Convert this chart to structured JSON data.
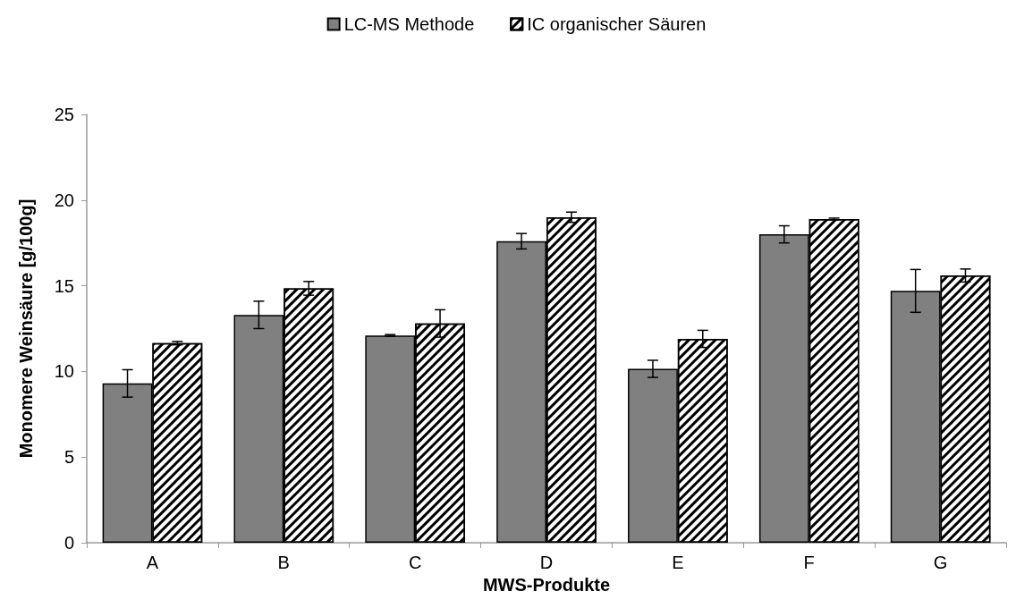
{
  "chart_data": {
    "type": "bar",
    "xlabel": "MWS-Produkte",
    "ylabel": "Monomere Weinsäure [g/100g]",
    "categories": [
      "A",
      "B",
      "C",
      "D",
      "E",
      "F",
      "G"
    ],
    "series": [
      {
        "name": "LC-MS Methode",
        "color": "#808080",
        "values": [
          9.3,
          13.3,
          12.1,
          17.6,
          10.15,
          18.0,
          14.7
        ],
        "errors": [
          0.8,
          0.8,
          0.05,
          0.45,
          0.5,
          0.5,
          1.25
        ]
      },
      {
        "name": "IC organischer Säuren",
        "color": "#ffffff",
        "values": [
          11.65,
          14.85,
          12.8,
          19.0,
          11.9,
          18.9,
          15.6
        ],
        "errors": [
          0.1,
          0.4,
          0.8,
          0.3,
          0.5,
          0.05,
          0.38
        ]
      }
    ],
    "ylim": [
      0,
      25
    ],
    "yticks": [
      0,
      5,
      10,
      15,
      20,
      25
    ],
    "grid": false,
    "legend": "top"
  }
}
